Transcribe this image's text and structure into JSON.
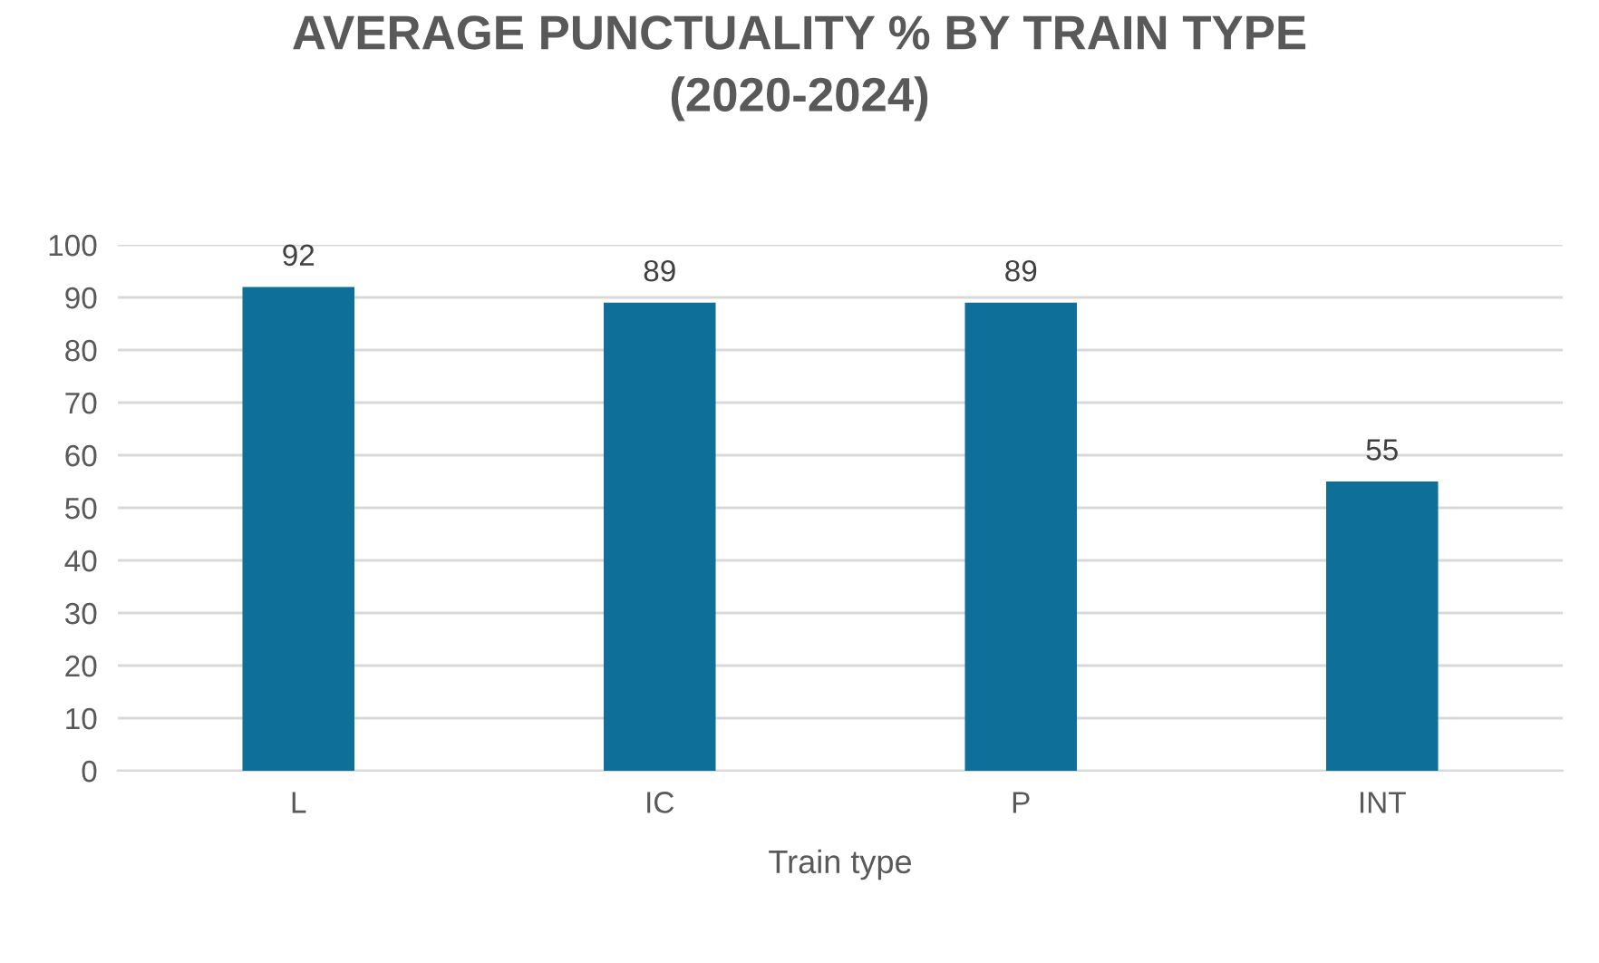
{
  "chart_data": {
    "type": "bar",
    "title": "AVERAGE PUNCTUALITY % BY TRAIN TYPE\n(2020-2024)",
    "xlabel": "Train type",
    "categories": [
      "L",
      "IC",
      "P",
      "INT"
    ],
    "values": [
      92,
      89,
      89,
      55
    ],
    "color": "#0e7099",
    "ylim": [
      0,
      100
    ],
    "yticks": [
      0,
      10,
      20,
      30,
      40,
      50,
      60,
      70,
      80,
      90,
      100
    ],
    "grid": "y",
    "data_labels": true
  }
}
